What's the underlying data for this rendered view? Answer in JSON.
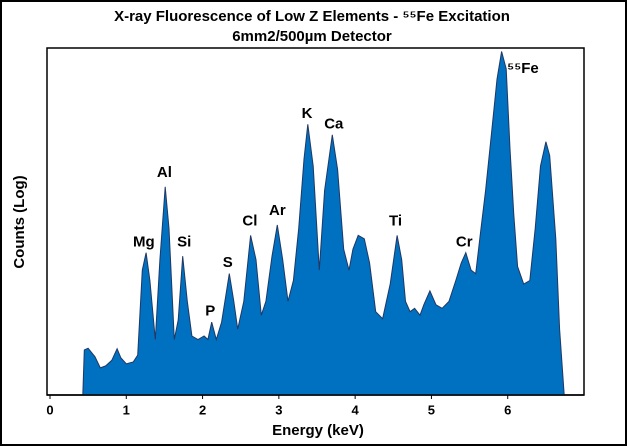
{
  "chart_data": {
    "type": "area",
    "title": "X-ray Fluorescence of Low Z Elements - ⁵⁵Fe Excitation",
    "subtitle": "6mm2/500µm Detector",
    "x_label": "Energy (keV)",
    "y_label": "Counts (Log)",
    "log_scale": true,
    "color": "#0070c0",
    "xlim": [
      0,
      7
    ],
    "xticks": [
      0,
      1,
      2,
      3,
      4,
      5,
      6
    ],
    "ylim": [
      0,
      100
    ],
    "x": [
      0.43,
      0.45,
      0.5,
      0.59,
      0.66,
      0.73,
      0.81,
      0.88,
      0.93,
      1.0,
      1.09,
      1.15,
      1.21,
      1.26,
      1.31,
      1.38,
      1.44,
      1.51,
      1.56,
      1.63,
      1.68,
      1.74,
      1.8,
      1.86,
      1.94,
      2.02,
      2.07,
      2.12,
      2.18,
      2.25,
      2.35,
      2.41,
      2.46,
      2.54,
      2.63,
      2.7,
      2.77,
      2.83,
      2.91,
      2.98,
      3.05,
      3.12,
      3.19,
      3.26,
      3.33,
      3.38,
      3.45,
      3.53,
      3.6,
      3.7,
      3.77,
      3.85,
      3.92,
      3.97,
      4.04,
      4.12,
      4.19,
      4.27,
      4.36,
      4.46,
      4.55,
      4.61,
      4.66,
      4.72,
      4.78,
      4.85,
      4.9,
      4.98,
      5.06,
      5.14,
      5.23,
      5.32,
      5.39,
      5.45,
      5.52,
      5.58,
      5.65,
      5.71,
      5.79,
      5.86,
      5.92,
      5.98,
      6.03,
      6.08,
      6.13,
      6.21,
      6.29,
      6.36,
      6.43,
      6.5,
      6.55,
      6.63,
      6.68,
      6.74
    ],
    "values": [
      0,
      13,
      13.5,
      11,
      7.8,
      8.4,
      10,
      13.3,
      10.7,
      9,
      9.5,
      11.5,
      36,
      41,
      33,
      16,
      39,
      60,
      48,
      16,
      21.6,
      40,
      27,
      17,
      16,
      17,
      16,
      21,
      16,
      21,
      35,
      27,
      19,
      27,
      46,
      39,
      23,
      27,
      40,
      49,
      39,
      27,
      33,
      48,
      68,
      78,
      66,
      36,
      59,
      75,
      65,
      42,
      36,
      42,
      46,
      45,
      38,
      24,
      22,
      32,
      46,
      39,
      27,
      24,
      25,
      23,
      26,
      30,
      26,
      25,
      27,
      33,
      38,
      41,
      36,
      35,
      48,
      59,
      76,
      91,
      99,
      94,
      71,
      52,
      37,
      32,
      33,
      48,
      66,
      73,
      69,
      45,
      19,
      0
    ],
    "annotations": [
      {
        "text": "Mg",
        "x": 1.23,
        "y": 44
      },
      {
        "text": "Al",
        "x": 1.5,
        "y": 64
      },
      {
        "text": "Si",
        "x": 1.76,
        "y": 44
      },
      {
        "text": "P",
        "x": 2.1,
        "y": 24
      },
      {
        "text": "S",
        "x": 2.33,
        "y": 38
      },
      {
        "text": "Cl",
        "x": 2.62,
        "y": 50
      },
      {
        "text": "Ar",
        "x": 2.98,
        "y": 53
      },
      {
        "text": "K",
        "x": 3.37,
        "y": 81
      },
      {
        "text": "Ca",
        "x": 3.72,
        "y": 78
      },
      {
        "text": "Ti",
        "x": 4.53,
        "y": 50
      },
      {
        "text": "Cr",
        "x": 5.43,
        "y": 44
      },
      {
        "text": "⁵⁵Fe",
        "x": 6.2,
        "y": 94
      }
    ]
  }
}
